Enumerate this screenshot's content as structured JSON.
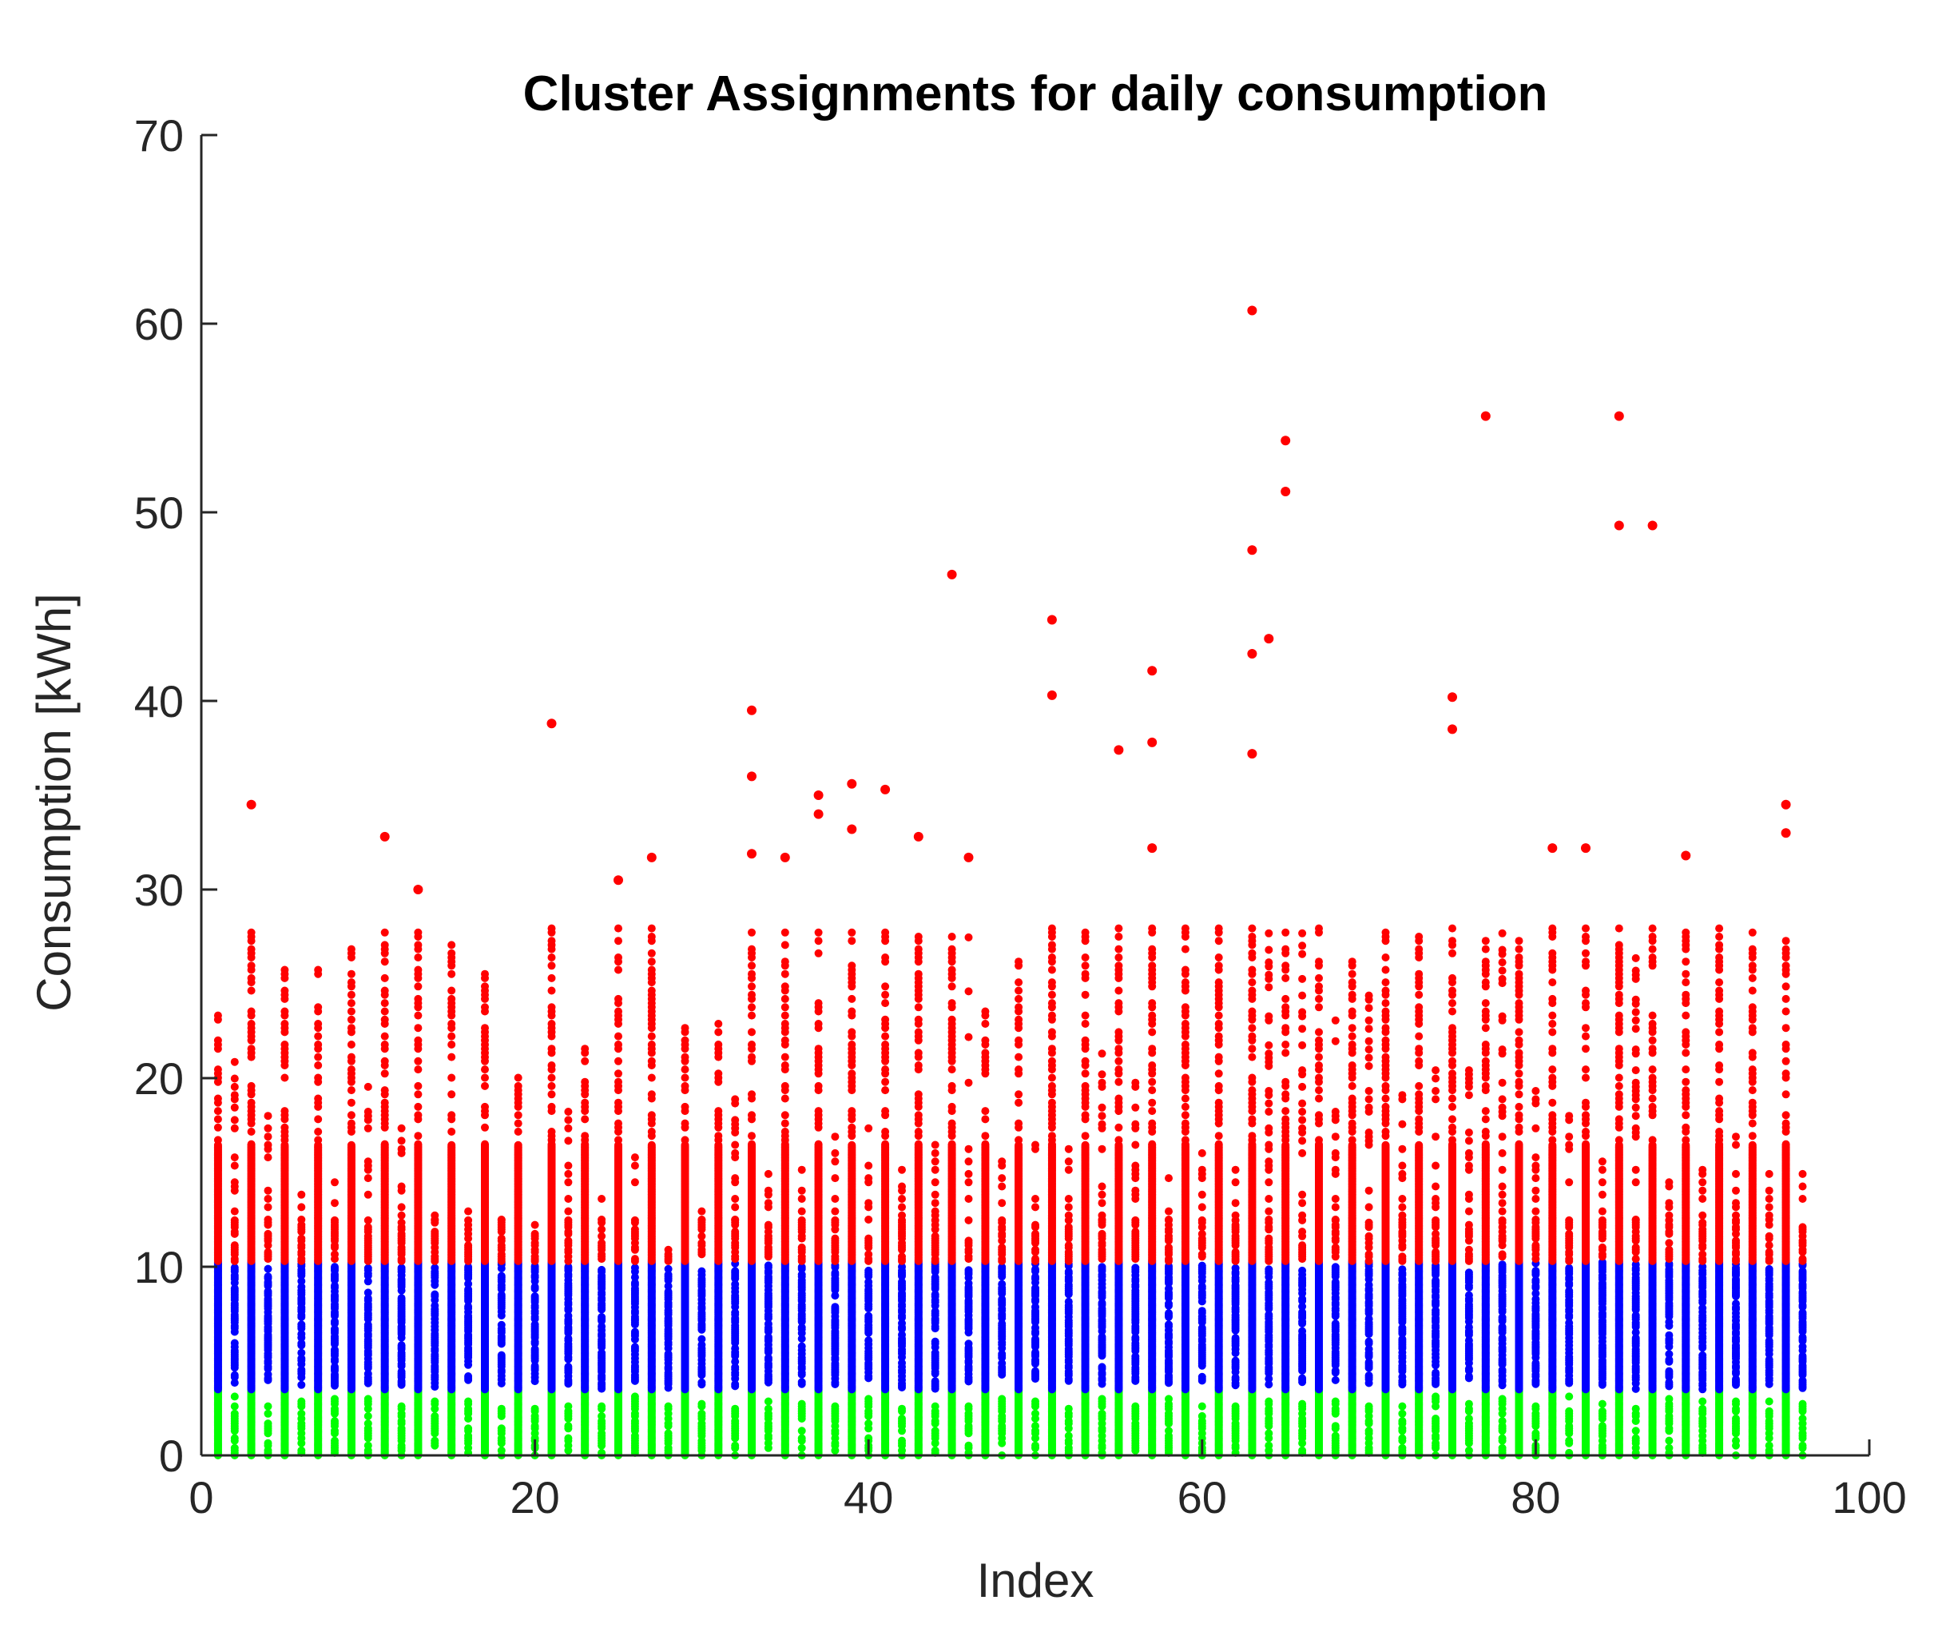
{
  "chart_data": {
    "type": "scatter",
    "title": "Cluster Assignments for daily consumption",
    "xlabel": "Index",
    "ylabel": "Consumption [kWh]",
    "xlim": [
      0,
      100
    ],
    "ylim": [
      0,
      70
    ],
    "xticks": [
      0,
      20,
      40,
      60,
      80,
      100
    ],
    "yticks": [
      0,
      10,
      20,
      30,
      40,
      50,
      60,
      70
    ],
    "grid": false,
    "legend": "none",
    "marker": "dot",
    "index_range": [
      1,
      96
    ],
    "series": [
      {
        "cluster": 1,
        "color": "#00ff00",
        "y_range": [
          0,
          3.5
        ]
      },
      {
        "cluster": 2,
        "color": "#0000ff",
        "y_range": [
          3.5,
          10.3
        ]
      },
      {
        "cluster": 3,
        "color": "#ff0000",
        "y_range": [
          10.3,
          60.7
        ],
        "column_max": [
          23.5,
          21,
          34.5,
          18,
          25.8,
          14,
          26.3,
          15.3,
          27,
          20.5,
          32.8,
          18,
          30,
          13.8,
          27.5,
          13.5,
          25.8,
          13.3,
          20.3,
          13.3,
          38.8,
          19,
          21.8,
          14,
          30.5,
          17,
          31.7,
          11,
          22.8,
          13,
          23,
          19.8,
          39.5,
          15,
          31.7,
          15.5,
          35,
          17,
          35.6,
          17.5,
          35.3,
          15.8,
          32.8,
          16.5,
          46.7,
          31.7,
          23.7,
          16,
          27.2,
          17,
          44.3,
          17.3,
          30.8,
          21.8,
          37.4,
          20,
          41.6,
          15,
          28.8,
          16.5,
          29.3,
          15.5,
          60.7,
          43.3,
          53.8,
          28.8,
          28.7,
          23.8,
          26.3,
          24.5,
          28.8,
          20.5,
          29,
          20.5,
          40.2,
          22,
          55.1,
          28.5,
          27.3,
          23,
          32.2,
          18,
          32.2,
          15.8,
          55.1,
          29.8,
          49.3,
          15.3,
          31.8,
          15.8,
          30.6,
          18.8,
          30.6,
          15,
          34.5,
          15
        ],
        "outliers": [
          [
            3,
            34.5
          ],
          [
            11,
            32.8
          ],
          [
            13,
            30
          ],
          [
            21,
            38.8
          ],
          [
            25,
            30.5
          ],
          [
            27,
            31.7
          ],
          [
            33,
            39.5
          ],
          [
            33,
            36
          ],
          [
            33,
            31.9
          ],
          [
            35,
            31.7
          ],
          [
            37,
            35
          ],
          [
            37,
            34
          ],
          [
            39,
            35.6
          ],
          [
            39,
            33.2
          ],
          [
            41,
            35.3
          ],
          [
            43,
            32.8
          ],
          [
            45,
            46.7
          ],
          [
            46,
            31.7
          ],
          [
            51,
            44.3
          ],
          [
            51,
            40.3
          ],
          [
            55,
            37.4
          ],
          [
            57,
            41.6
          ],
          [
            57,
            37.8
          ],
          [
            57,
            32.2
          ],
          [
            63,
            60.7
          ],
          [
            63,
            48
          ],
          [
            63,
            42.5
          ],
          [
            63,
            37.2
          ],
          [
            64,
            43.3
          ],
          [
            65,
            53.8
          ],
          [
            65,
            51.1
          ],
          [
            75,
            40.2
          ],
          [
            75,
            38.5
          ],
          [
            77,
            55.1
          ],
          [
            81,
            32.2
          ],
          [
            83,
            32.2
          ],
          [
            85,
            55.1
          ],
          [
            85,
            49.3
          ],
          [
            87,
            49.3
          ],
          [
            89,
            31.8
          ],
          [
            95,
            34.5
          ],
          [
            95,
            33
          ]
        ]
      }
    ]
  }
}
